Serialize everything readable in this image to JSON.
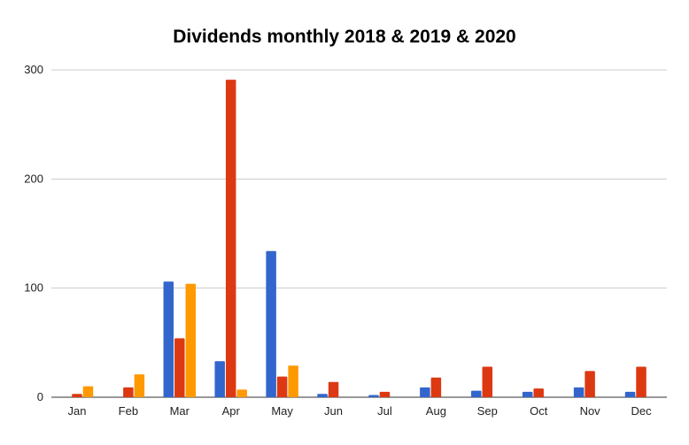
{
  "chart_data": {
    "type": "bar",
    "title": "Dividends monthly 2018 & 2019 & 2020",
    "xlabel": "",
    "ylabel": "",
    "categories": [
      "Jan",
      "Feb",
      "Mar",
      "Apr",
      "May",
      "Jun",
      "Jul",
      "Aug",
      "Sep",
      "Oct",
      "Nov",
      "Dec"
    ],
    "ylim": [
      0,
      300
    ],
    "yticks": [
      0,
      100,
      200,
      300
    ],
    "grid": true,
    "legend": "none",
    "series": [
      {
        "color": "#3366cc",
        "values": [
          0,
          0,
          106,
          33,
          134,
          3,
          2,
          9,
          6,
          5,
          9,
          5
        ]
      },
      {
        "color": "#dc3912",
        "values": [
          3,
          9,
          54,
          291,
          19,
          14,
          5,
          18,
          28,
          8,
          24,
          28
        ]
      },
      {
        "color": "#ff9900",
        "values": [
          10,
          21,
          104,
          7,
          29,
          0,
          0,
          0,
          0,
          0,
          0,
          0
        ]
      }
    ]
  }
}
